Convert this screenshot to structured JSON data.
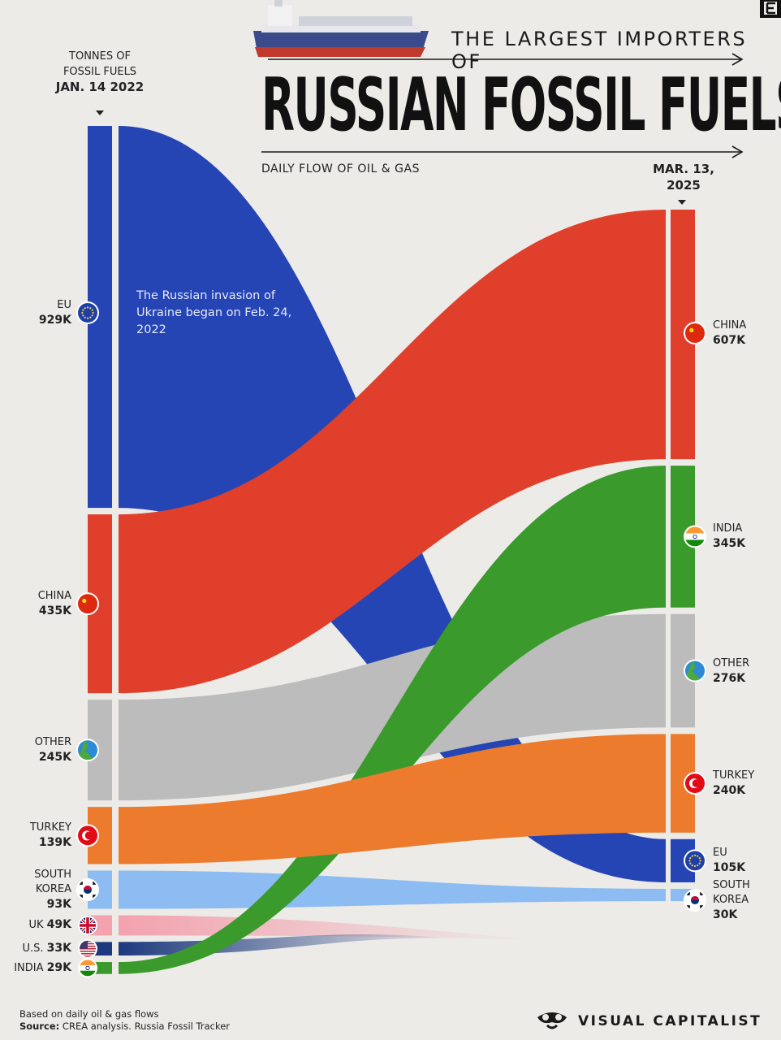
{
  "header": {
    "supertitle": "THE LARGEST IMPORTERS OF",
    "title": "RUSSIAN FOSSIL FUELS",
    "subtitle": "DAILY FLOW OF OIL & GAS",
    "left_unit_line1": "TONNES OF",
    "left_unit_line2": "FOSSIL FUELS",
    "left_date": "JAN. 14 2022",
    "right_date_line1": "MAR. 13,",
    "right_date_line2": "2025"
  },
  "annotation": "The Russian invasion of Ukraine began on Feb. 24, 2022",
  "footer": {
    "note": "Based on daily oil & gas flows",
    "source_label": "Source:",
    "source_text": "CREA analysis. Russia Fossil Tracker",
    "brand": "VISUAL CAPITALIST"
  },
  "colors": {
    "background": "#ecebe8",
    "eu": "#2545b5",
    "china": "#e03f2b",
    "other": "#bcbcbc",
    "turkey": "#ec7b2d",
    "south_korea": "#8cbcf2",
    "uk": "#f3a2ae",
    "us": "#1e3a7e",
    "india": "#3a9a2c"
  },
  "chart_data": {
    "type": "sankey",
    "unit": "Tonnes of fossil fuels",
    "source_date": "JAN. 14 2022",
    "target_date": "MAR. 13, 2025",
    "source_nodes": [
      {
        "id": "eu",
        "name": "EU",
        "value_label": "929K",
        "value": 929000,
        "icon": "eu-flag-icon"
      },
      {
        "id": "china",
        "name": "CHINA",
        "value_label": "435K",
        "value": 435000,
        "icon": "china-flag-icon"
      },
      {
        "id": "other",
        "name": "OTHER",
        "value_label": "245K",
        "value": 245000,
        "icon": "globe-icon"
      },
      {
        "id": "turkey",
        "name": "TURKEY",
        "value_label": "139K",
        "value": 139000,
        "icon": "turkey-flag-icon"
      },
      {
        "id": "south_korea",
        "name": "SOUTH KOREA",
        "value_label": "93K",
        "value": 93000,
        "icon": "south-korea-flag-icon"
      },
      {
        "id": "uk",
        "name": "UK",
        "value_label": "49K",
        "value": 49000,
        "icon": "uk-flag-icon"
      },
      {
        "id": "us",
        "name": "U.S.",
        "value_label": "33K",
        "value": 33000,
        "icon": "us-flag-icon"
      },
      {
        "id": "india",
        "name": "INDIA",
        "value_label": "29K",
        "value": 29000,
        "icon": "india-flag-icon"
      }
    ],
    "target_nodes": [
      {
        "id": "china",
        "name": "CHINA",
        "value_label": "607K",
        "value": 607000,
        "icon": "china-flag-icon"
      },
      {
        "id": "india",
        "name": "INDIA",
        "value_label": "345K",
        "value": 345000,
        "icon": "india-flag-icon"
      },
      {
        "id": "other",
        "name": "OTHER",
        "value_label": "276K",
        "value": 276000,
        "icon": "globe-icon"
      },
      {
        "id": "turkey",
        "name": "TURKEY",
        "value_label": "240K",
        "value": 240000,
        "icon": "turkey-flag-icon"
      },
      {
        "id": "eu",
        "name": "EU",
        "value_label": "105K",
        "value": 105000,
        "icon": "eu-flag-icon"
      },
      {
        "id": "south_korea",
        "name": "SOUTH KOREA",
        "value_label": "30K",
        "value": 30000,
        "icon": "south-korea-flag-icon"
      }
    ],
    "flows": [
      {
        "from": "eu",
        "to": "eu",
        "from_value": 929000,
        "to_value": 105000
      },
      {
        "from": "china",
        "to": "china",
        "from_value": 435000,
        "to_value": 607000
      },
      {
        "from": "other",
        "to": "other",
        "from_value": 245000,
        "to_value": 276000
      },
      {
        "from": "turkey",
        "to": "turkey",
        "from_value": 139000,
        "to_value": 240000
      },
      {
        "from": "south_korea",
        "to": "south_korea",
        "from_value": 93000,
        "to_value": 30000
      },
      {
        "from": "india",
        "to": "india",
        "from_value": 29000,
        "to_value": 345000
      },
      {
        "from": "uk",
        "to": null,
        "from_value": 49000,
        "to_value": 0
      },
      {
        "from": "us",
        "to": null,
        "from_value": 33000,
        "to_value": 0
      }
    ]
  }
}
